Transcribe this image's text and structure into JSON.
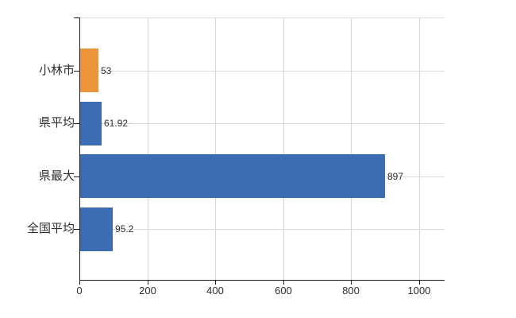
{
  "chart_data": {
    "type": "bar",
    "orientation": "horizontal",
    "title": "",
    "xlabel": "",
    "ylabel": "",
    "categories": [
      "小林市",
      "県平均",
      "県最大",
      "全国平均"
    ],
    "values": [
      53,
      61.92,
      897,
      95.2
    ],
    "value_labels": [
      "53",
      "61.92",
      "897",
      "95.2"
    ],
    "series": [
      {
        "name": "value",
        "values": [
          53,
          61.92,
          897,
          95.2
        ]
      }
    ],
    "highlight_index": 0,
    "xlim": [
      0,
      1000
    ],
    "x_ticks": [
      0,
      200,
      400,
      600,
      800,
      1000
    ],
    "x_tick_labels": [
      "0",
      "200",
      "400",
      "600",
      "800",
      "1000"
    ],
    "grid": true,
    "legend": false
  },
  "colors": {
    "highlight_bar": "#ec9439",
    "default_bar": "#3c6db3",
    "gridline": "#d9d9d9",
    "axis": "#1a1a1a",
    "text": "#2e2e2e",
    "background": "#ffffff"
  }
}
